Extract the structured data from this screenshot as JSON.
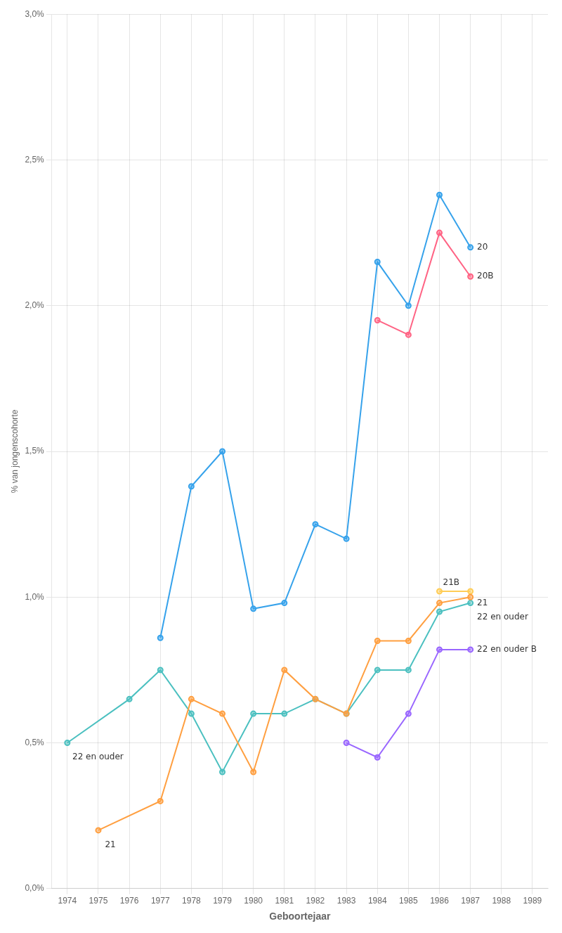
{
  "chart_data": {
    "type": "line",
    "xlabel": "Geboortejaar",
    "ylabel": "% van jongenscohorte",
    "series": [
      {
        "x": [
          1977,
          1978,
          1979,
          1980,
          1981,
          1982,
          1983,
          1984,
          1985,
          1986,
          1987
        ],
        "values": [
          0.0086,
          0.0138,
          0.015,
          0.0096,
          0.0098,
          0.0125,
          0.012,
          0.0215,
          0.02,
          0.0238,
          0.022
        ]
      },
      {
        "x": [
          1984,
          1985,
          1986,
          1987
        ],
        "values": [
          0.0195,
          0.019,
          0.0225,
          0.021
        ]
      },
      {
        "x": [
          1975,
          1977,
          1978,
          1979,
          1980,
          1981,
          1982,
          1983,
          1984,
          1985,
          1986,
          1987
        ],
        "values": [
          0.002,
          0.003,
          0.0065,
          0.006,
          0.004,
          0.0075,
          0.0065,
          0.006,
          0.0085,
          0.0085,
          0.0098,
          0.01
        ]
      },
      {
        "x": [
          1986,
          1987
        ],
        "values": [
          0.0102,
          0.0102
        ]
      },
      {
        "x": [
          1974,
          1976,
          1977,
          1978,
          1979,
          1980,
          1981,
          1982,
          1983,
          1984,
          1985,
          1986,
          1987
        ],
        "values": [
          0.005,
          0.0065,
          0.0075,
          0.006,
          0.004,
          0.006,
          0.006,
          0.0065,
          0.006,
          0.0075,
          0.0075,
          0.0095,
          0.0098
        ]
      },
      {
        "x": [
          1983,
          1984,
          1985,
          1986,
          1987
        ],
        "values": [
          0.005,
          0.0045,
          0.006,
          0.0082,
          0.0082
        ]
      }
    ],
    "marker": "circle",
    "line_style": "solid",
    "xlim": [
      1973.5,
      1989.5
    ],
    "xticks": [
      1974,
      1975,
      1976,
      1977,
      1978,
      1979,
      1980,
      1981,
      1982,
      1983,
      1984,
      1985,
      1986,
      1987,
      1988,
      1989
    ],
    "ylim": [
      0.0,
      0.03
    ],
    "yticks": [
      {
        "value": 0.0,
        "label": "0,0%"
      },
      {
        "value": 0.005,
        "label": "0,5%"
      },
      {
        "value": 0.01,
        "label": "1,0%"
      },
      {
        "value": 0.015,
        "label": "1,5%"
      },
      {
        "value": 0.02,
        "label": "2,0%"
      },
      {
        "value": 0.025,
        "label": "2,5%"
      },
      {
        "value": 0.03,
        "label": "3,0%"
      }
    ],
    "grid": true,
    "annotations": [
      {
        "text": "20",
        "x": 1987.1,
        "y": 0.022
      },
      {
        "text": "20B",
        "x": 1987.1,
        "y": 0.021
      },
      {
        "text": "21",
        "x": 1975.1,
        "y": 0.0015
      },
      {
        "text": "21B",
        "x": 1986.0,
        "y": 0.0105
      },
      {
        "text": "21",
        "x": 1987.1,
        "y": 0.0098
      },
      {
        "text": "22 en ouder",
        "x": 1974.05,
        "y": 0.0045
      },
      {
        "text": "22 en ouder",
        "x": 1987.1,
        "y": 0.0093
      },
      {
        "text": "22 en ouder B",
        "x": 1987.1,
        "y": 0.0082
      }
    ]
  }
}
